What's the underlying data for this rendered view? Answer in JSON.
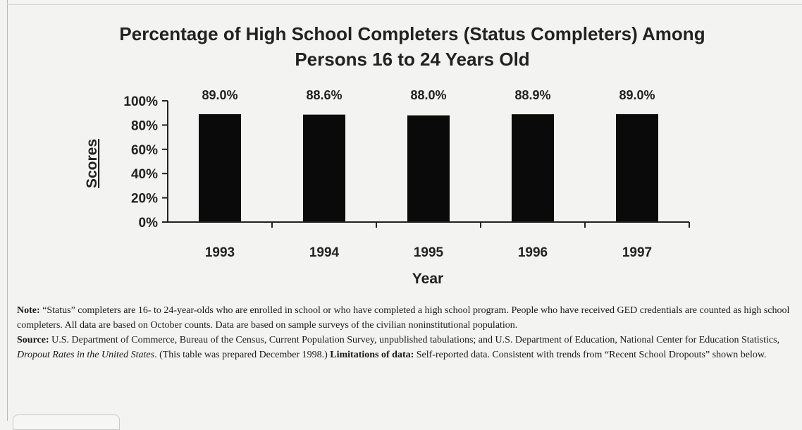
{
  "chart_data": {
    "type": "bar",
    "title": "Percentage of High School Completers (Status Completers) Among Persons 16 to 24 Years Old",
    "xlabel": "Year",
    "ylabel": "Scores",
    "categories": [
      "1993",
      "1994",
      "1995",
      "1996",
      "1997"
    ],
    "values": [
      89.0,
      88.6,
      88.0,
      88.9,
      89.0
    ],
    "data_labels": [
      "89.0%",
      "88.6%",
      "88.0%",
      "88.9%",
      "89.0%"
    ],
    "ylim": [
      0,
      100
    ],
    "yticks": [
      0,
      20,
      40,
      60,
      80,
      100
    ],
    "ytick_labels": [
      "0%",
      "20%",
      "40%",
      "60%",
      "80%",
      "100%"
    ],
    "bar_color": "#0a0a0a",
    "grid": false,
    "legend": "none"
  },
  "notes": {
    "note_label": "Note:",
    "note_text": " “Status” completers are 16- to 24-year-olds who are enrolled in school or who have completed a high school program.  People who have received GED credentials are counted as high school completers.  All data are based on October counts.  Data are based on sample surveys of the civilian noninstitutional population.",
    "source_label": "Source:",
    "source_text": " U.S. Department of Commerce, Bureau of the Census, Current Population Survey, unpublished tabulations; and U.S. Department of Education, National Center for Education Statistics, ",
    "source_italic": "Dropout Rates in the United States",
    "source_text_2": ".  (This table was prepared December 1998.) ",
    "limitations_label": "Limitations of data:",
    "limitations_text": " Self-reported data. Consistent with trends from “Recent School Dropouts” shown below."
  }
}
